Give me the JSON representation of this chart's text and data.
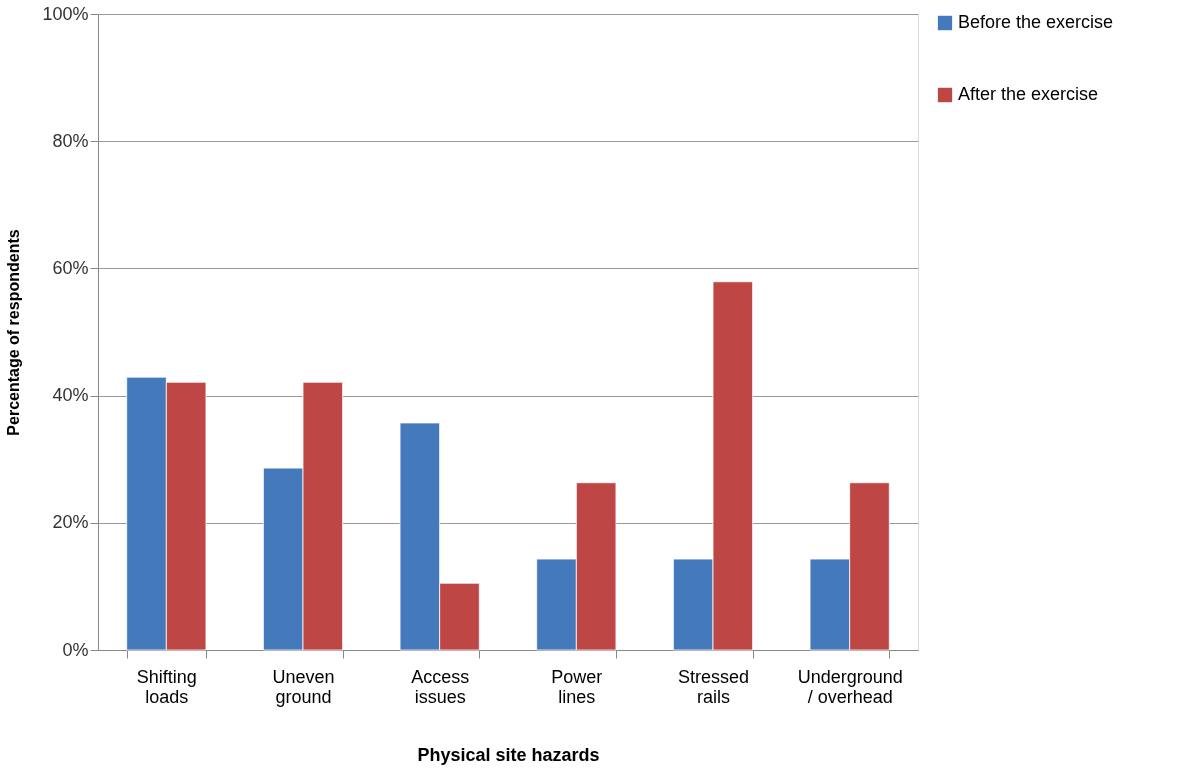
{
  "chart_data": {
    "type": "bar",
    "xlabel": "Physical site hazards",
    "ylabel": "Percentage of respondents",
    "categories": [
      "Shifting\nloads",
      "Uneven\nground",
      "Access\nissues",
      "Power\nlines",
      "Stressed\nrails",
      "Underground\n/ overhead"
    ],
    "series": [
      {
        "name": "Before the exercise",
        "color": "#4479bb",
        "values": [
          42.9,
          28.6,
          35.7,
          14.3,
          14.3,
          14.3
        ]
      },
      {
        "name": "After the exercise",
        "color": "#be4644",
        "values": [
          42.1,
          42.1,
          10.5,
          26.3,
          57.9,
          26.3
        ]
      }
    ],
    "ylim": [
      0,
      100
    ],
    "yticks": [
      {
        "value": 0,
        "label": "0%"
      },
      {
        "value": 20,
        "label": "20%"
      },
      {
        "value": 40,
        "label": "40%"
      },
      {
        "value": 60,
        "label": "60%"
      },
      {
        "value": 80,
        "label": "80%"
      },
      {
        "value": 100,
        "label": "100%"
      }
    ],
    "grid": "y",
    "legend": "right"
  }
}
